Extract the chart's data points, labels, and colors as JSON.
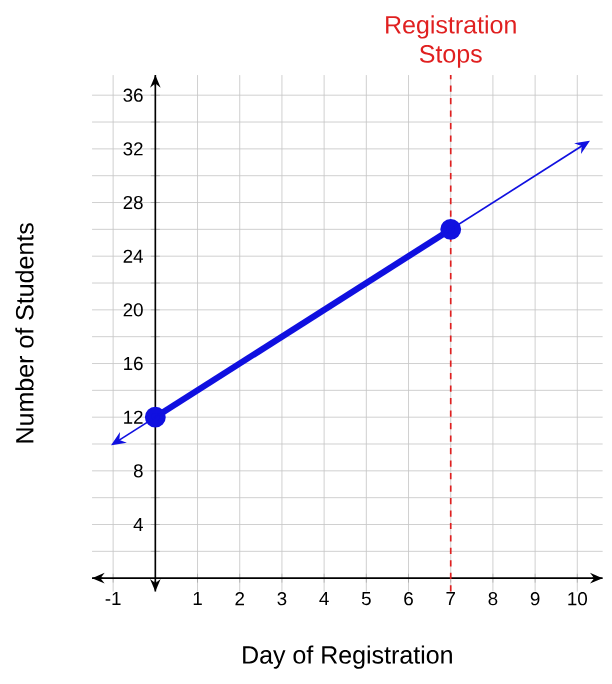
{
  "chart_data": {
    "type": "line",
    "xlabel": "Day of Registration",
    "ylabel": "Number of Students",
    "xlim": [
      -1.5,
      10.6
    ],
    "ylim": [
      -1,
      37.5
    ],
    "xticks": [
      -1,
      {
        "value": 0,
        "label": null
      },
      1,
      2,
      3,
      4,
      5,
      6,
      7,
      8,
      9,
      10
    ],
    "yticks": [
      {
        "value": 2,
        "label": null
      },
      4,
      {
        "value": 6,
        "label": null
      },
      8,
      {
        "value": 10,
        "label": null
      },
      12,
      {
        "value": 14,
        "label": null
      },
      16,
      {
        "value": 18,
        "label": null
      },
      20,
      {
        "value": 22,
        "label": null
      },
      24,
      {
        "value": 26,
        "label": null
      },
      28,
      {
        "value": 30,
        "label": null
      },
      32,
      {
        "value": 34,
        "label": null
      },
      36
    ],
    "grid": true,
    "series": [
      {
        "color": "#1010e0",
        "x": [
          0,
          7
        ],
        "values": [
          12,
          26
        ],
        "marker": "circle"
      }
    ],
    "ref_lines": [
      {
        "axis": "x",
        "value": 7,
        "label": "Registration Stops",
        "color": "#e02020",
        "line_style": "dashed"
      }
    ]
  }
}
